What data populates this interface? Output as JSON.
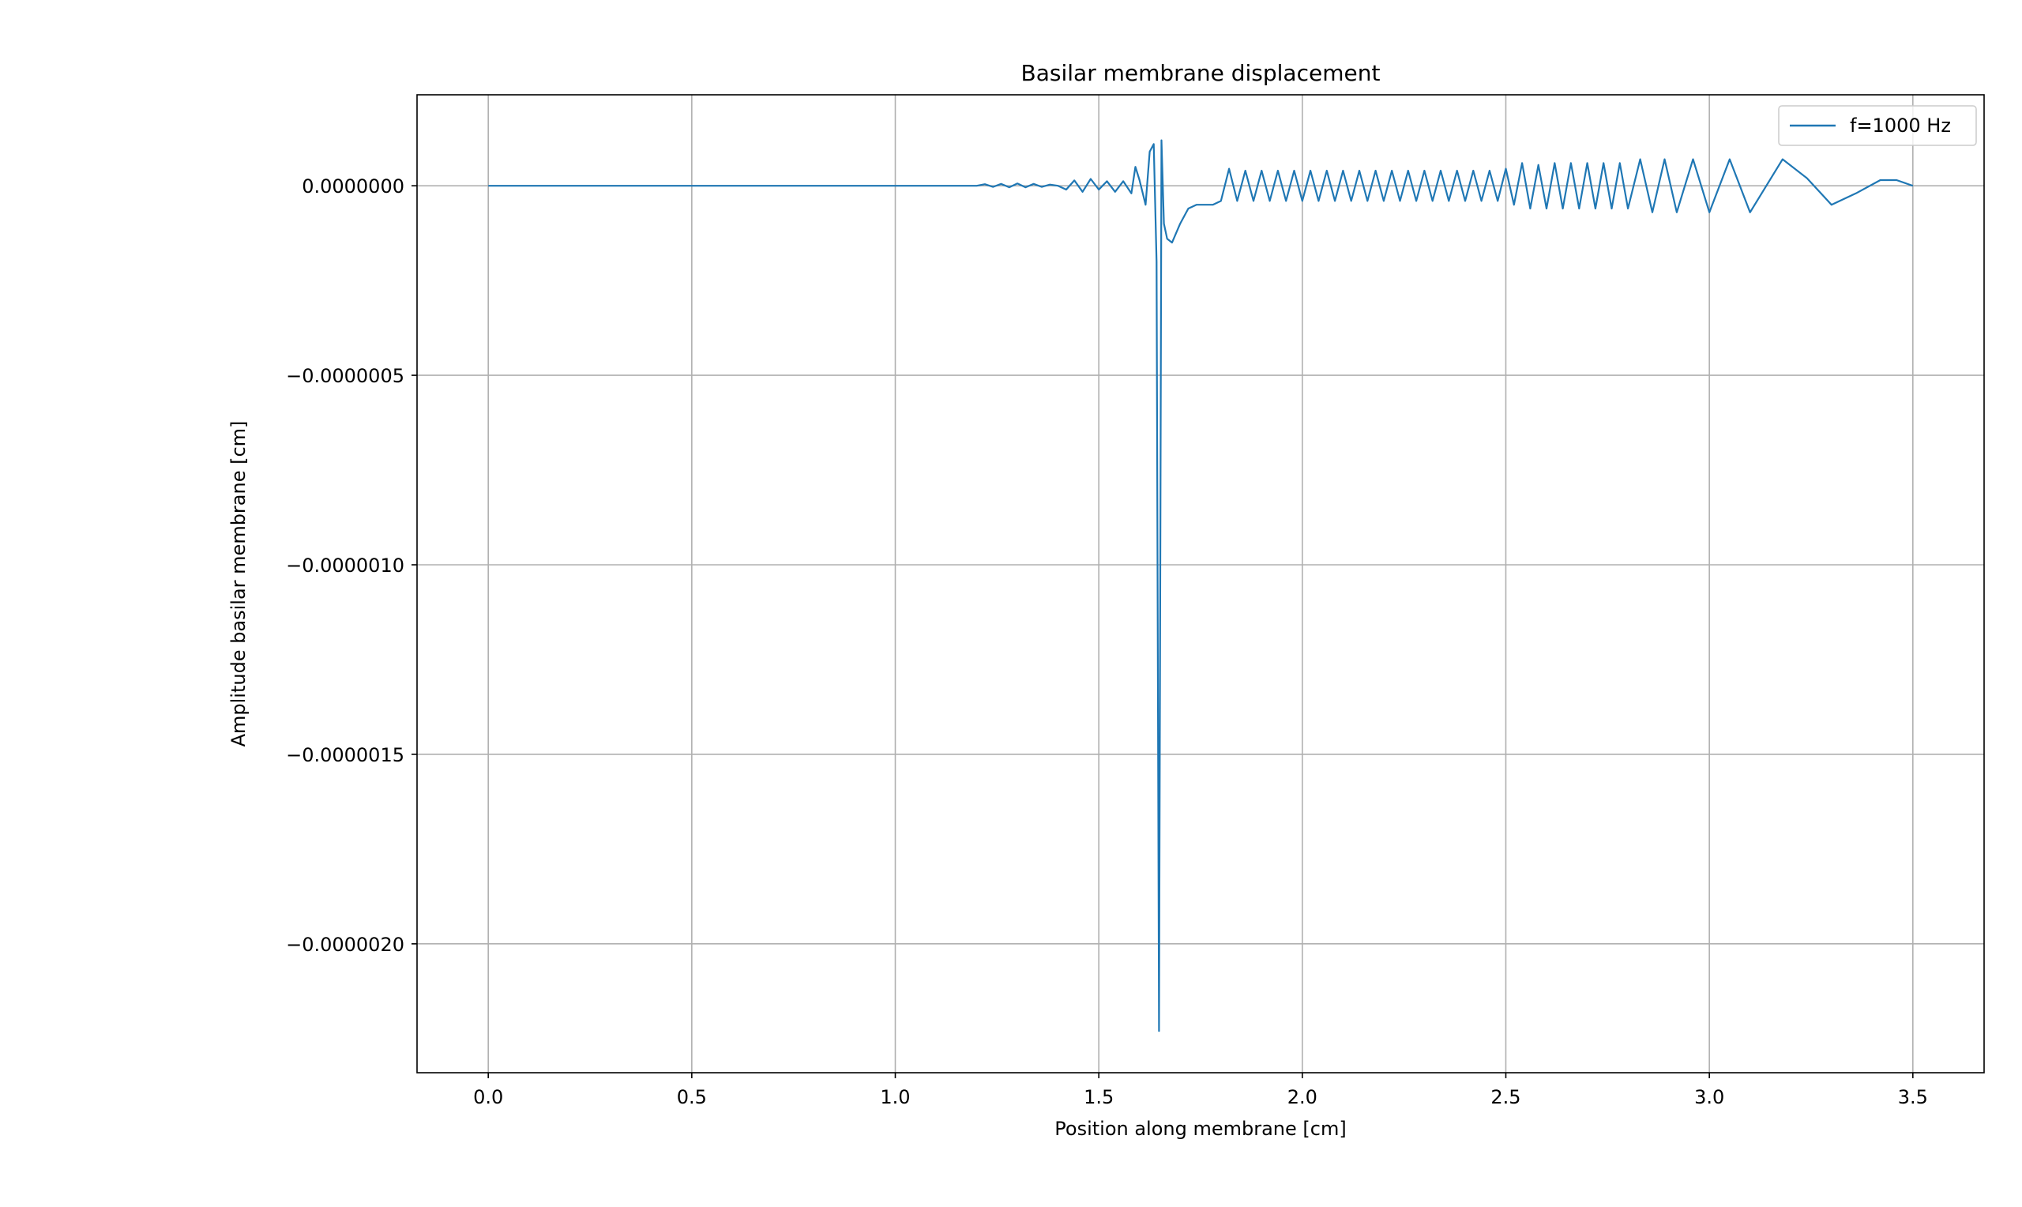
{
  "chart_data": {
    "type": "line",
    "title": "Basilar membrane displacement",
    "xlabel": "Position along membrane [cm]",
    "ylabel": "Amplitude basilar membrane [cm]",
    "xlim": [
      -0.175,
      3.675
    ],
    "ylim": [
      -2.34e-06,
      2.4e-07
    ],
    "xticks": [
      0.0,
      0.5,
      1.0,
      1.5,
      2.0,
      2.5,
      3.0,
      3.5
    ],
    "xtick_labels": [
      "0.0",
      "0.5",
      "1.0",
      "1.5",
      "2.0",
      "2.5",
      "3.0",
      "3.5"
    ],
    "yticks": [
      0.0,
      -5e-07,
      -1e-06,
      -1.5e-06,
      -2e-06
    ],
    "ytick_labels": [
      "0.0000000",
      "−0.0000005",
      "−0.0000010",
      "−0.0000015",
      "−0.0000020"
    ],
    "grid": true,
    "legend_position": "top-right",
    "series": [
      {
        "name": "f=1000 Hz",
        "color": "#1f77b4",
        "points": [
          [
            0.0,
            0
          ],
          [
            0.9,
            0
          ],
          [
            1.0,
            0
          ],
          [
            1.1,
            0
          ],
          [
            1.2,
            0
          ],
          [
            1.22,
            4e-09
          ],
          [
            1.24,
            -3e-09
          ],
          [
            1.26,
            5e-09
          ],
          [
            1.28,
            -4e-09
          ],
          [
            1.3,
            6e-09
          ],
          [
            1.32,
            -4e-09
          ],
          [
            1.34,
            5e-09
          ],
          [
            1.36,
            -3e-09
          ],
          [
            1.38,
            3e-09
          ],
          [
            1.4,
            0
          ],
          [
            1.42,
            -1e-08
          ],
          [
            1.44,
            1.4e-08
          ],
          [
            1.46,
            -1.6e-08
          ],
          [
            1.48,
            1.8e-08
          ],
          [
            1.5,
            -1e-08
          ],
          [
            1.52,
            1.2e-08
          ],
          [
            1.54,
            -1.6e-08
          ],
          [
            1.56,
            1.2e-08
          ],
          [
            1.58,
            -2e-08
          ],
          [
            1.59,
            5e-08
          ],
          [
            1.6,
            1.5e-08
          ],
          [
            1.615,
            -5e-08
          ],
          [
            1.625,
            9e-08
          ],
          [
            1.635,
            1.1e-07
          ],
          [
            1.642,
            -2e-07
          ],
          [
            1.648,
            -2.23e-06
          ],
          [
            1.654,
            1.2e-07
          ],
          [
            1.66,
            -1e-07
          ],
          [
            1.668,
            -1.4e-07
          ],
          [
            1.68,
            -1.5e-07
          ],
          [
            1.7,
            -1e-07
          ],
          [
            1.72,
            -6e-08
          ],
          [
            1.74,
            -5e-08
          ],
          [
            1.76,
            -5e-08
          ],
          [
            1.78,
            -5e-08
          ],
          [
            1.8,
            -4e-08
          ],
          [
            1.82,
            4.5e-08
          ],
          [
            1.84,
            -4e-08
          ],
          [
            1.86,
            4e-08
          ],
          [
            1.88,
            -4e-08
          ],
          [
            1.9,
            4e-08
          ],
          [
            1.92,
            -4e-08
          ],
          [
            1.94,
            4e-08
          ],
          [
            1.96,
            -4e-08
          ],
          [
            1.98,
            4e-08
          ],
          [
            2.0,
            -4e-08
          ],
          [
            2.02,
            4e-08
          ],
          [
            2.04,
            -4e-08
          ],
          [
            2.06,
            4e-08
          ],
          [
            2.08,
            -4e-08
          ],
          [
            2.1,
            4e-08
          ],
          [
            2.12,
            -4e-08
          ],
          [
            2.14,
            4e-08
          ],
          [
            2.16,
            -4e-08
          ],
          [
            2.18,
            4e-08
          ],
          [
            2.2,
            -4e-08
          ],
          [
            2.22,
            4e-08
          ],
          [
            2.24,
            -4e-08
          ],
          [
            2.26,
            4e-08
          ],
          [
            2.28,
            -4e-08
          ],
          [
            2.3,
            4e-08
          ],
          [
            2.32,
            -4e-08
          ],
          [
            2.34,
            4e-08
          ],
          [
            2.36,
            -4e-08
          ],
          [
            2.38,
            4e-08
          ],
          [
            2.4,
            -4e-08
          ],
          [
            2.42,
            4e-08
          ],
          [
            2.44,
            -4e-08
          ],
          [
            2.46,
            4e-08
          ],
          [
            2.48,
            -4e-08
          ],
          [
            2.5,
            4.5e-08
          ],
          [
            2.52,
            -5e-08
          ],
          [
            2.54,
            6e-08
          ],
          [
            2.56,
            -6e-08
          ],
          [
            2.58,
            5.5e-08
          ],
          [
            2.6,
            -6e-08
          ],
          [
            2.62,
            6e-08
          ],
          [
            2.64,
            -6e-08
          ],
          [
            2.66,
            6e-08
          ],
          [
            2.68,
            -6e-08
          ],
          [
            2.7,
            6e-08
          ],
          [
            2.72,
            -6e-08
          ],
          [
            2.74,
            6e-08
          ],
          [
            2.76,
            -6e-08
          ],
          [
            2.78,
            6e-08
          ],
          [
            2.8,
            -6e-08
          ],
          [
            2.83,
            7e-08
          ],
          [
            2.86,
            -7e-08
          ],
          [
            2.89,
            7e-08
          ],
          [
            2.92,
            -7e-08
          ],
          [
            2.96,
            7e-08
          ],
          [
            3.0,
            -7e-08
          ],
          [
            3.05,
            7e-08
          ],
          [
            3.1,
            -7e-08
          ],
          [
            3.18,
            7e-08
          ],
          [
            3.24,
            2e-08
          ],
          [
            3.3,
            -5e-08
          ],
          [
            3.36,
            -2e-08
          ],
          [
            3.42,
            1.5e-08
          ],
          [
            3.46,
            1.5e-08
          ],
          [
            3.5,
            0.0
          ]
        ]
      }
    ]
  }
}
